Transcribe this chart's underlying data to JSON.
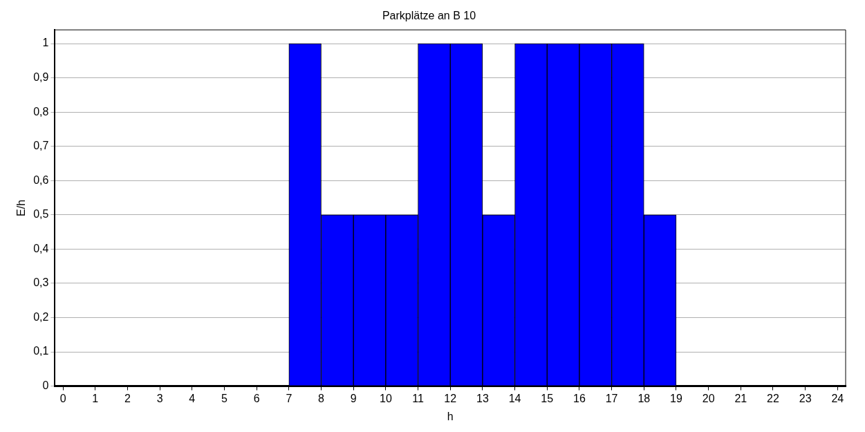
{
  "chart_data": {
    "type": "histogram",
    "title": "Parkplätze an B 10",
    "xlabel": "h",
    "ylabel": "E/h",
    "bins": [
      0,
      1,
      2,
      3,
      4,
      5,
      6,
      7,
      8,
      9,
      10,
      11,
      12,
      13,
      14,
      15,
      16,
      17,
      18,
      19,
      20,
      21,
      22,
      23,
      24
    ],
    "values": [
      0,
      0,
      0,
      0,
      0,
      0,
      0,
      1,
      0.5,
      0.5,
      0.5,
      1,
      1,
      0.5,
      1,
      1,
      1,
      1,
      0.5,
      0,
      0,
      0,
      0,
      0
    ],
    "color": "#0000ff",
    "xlim": [
      -0.25,
      24.25
    ],
    "xticks": [
      0,
      1,
      2,
      3,
      4,
      5,
      6,
      7,
      8,
      9,
      10,
      11,
      12,
      13,
      14,
      15,
      16,
      17,
      18,
      19,
      20,
      21,
      22,
      23,
      24
    ],
    "ylim": [
      0,
      1.04
    ],
    "yticks": [
      0,
      {
        "value": 0.1,
        "label": "0,1"
      },
      {
        "value": 0.2,
        "label": "0,2"
      },
      {
        "value": 0.3,
        "label": "0,3"
      },
      {
        "value": 0.4,
        "label": "0,4"
      },
      {
        "value": 0.5,
        "label": "0,5"
      },
      {
        "value": 0.6,
        "label": "0,6"
      },
      {
        "value": 0.7,
        "label": "0,7"
      },
      {
        "value": 0.8,
        "label": "0,8"
      },
      {
        "value": 0.9,
        "label": "0,9"
      },
      1
    ],
    "grid": "y",
    "legend": false
  }
}
